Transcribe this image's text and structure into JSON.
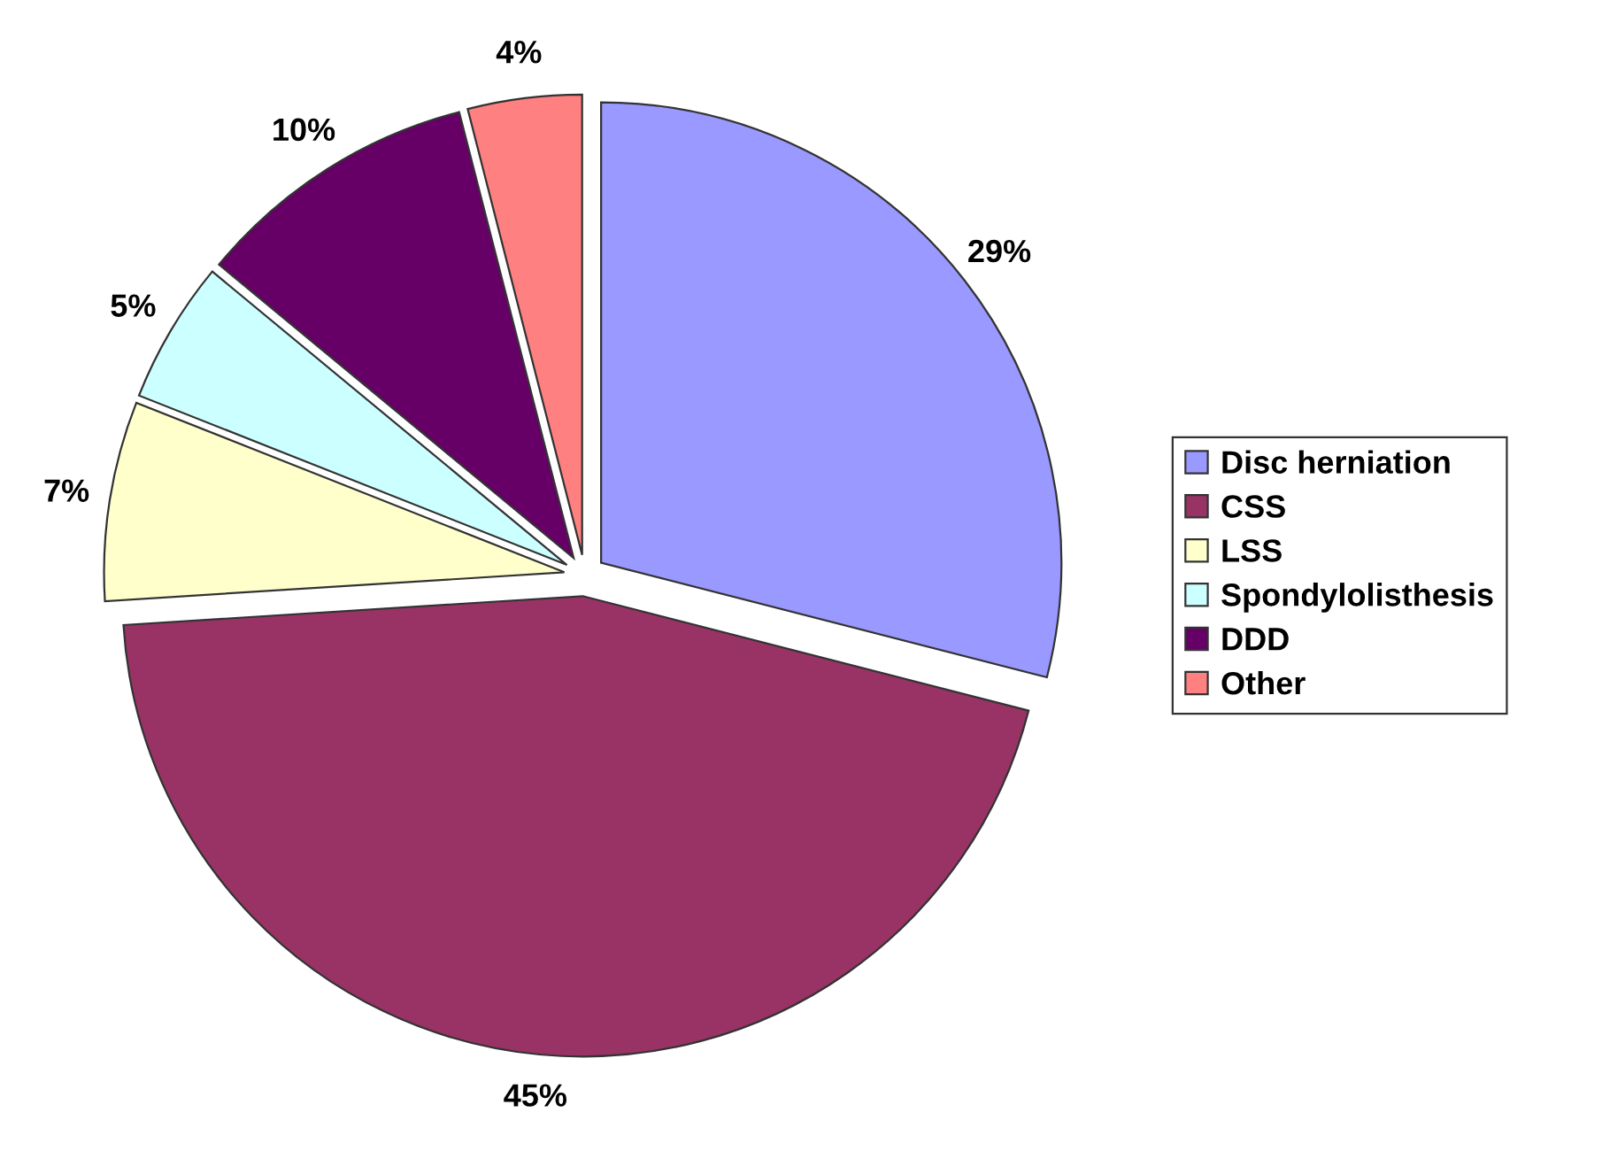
{
  "chart_data": {
    "type": "pie",
    "categories": [
      "Disc herniation",
      "CSS",
      "LSS",
      "Spondylolisthesis",
      "DDD",
      "Other"
    ],
    "values": [
      29,
      45,
      7,
      5,
      10,
      4
    ],
    "colors": [
      "#9999ff",
      "#993366",
      "#ffffcc",
      "#ccffff",
      "#660066",
      "#ff8080"
    ],
    "value_labels": [
      "29%",
      "45%",
      "7%",
      "5%",
      "10%",
      "4%"
    ],
    "legend": "right"
  }
}
